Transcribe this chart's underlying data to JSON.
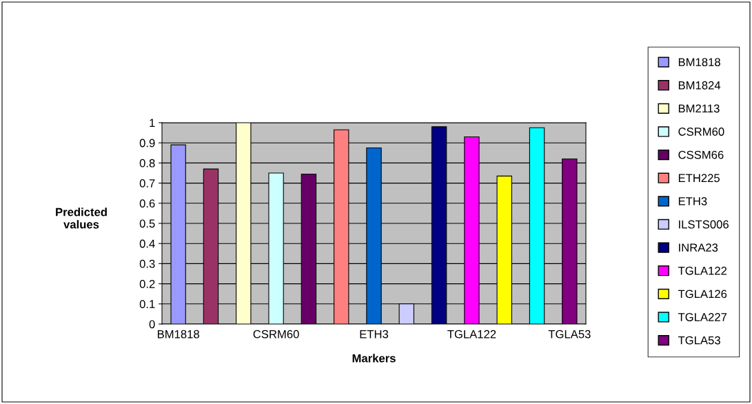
{
  "chart_data": {
    "type": "bar",
    "stacked": true,
    "xlabel": "Markers",
    "ylabel": "Predicted values",
    "categories": [
      "BM1818",
      null,
      null,
      "CSRM60",
      null,
      null,
      "ETH3",
      null,
      null,
      "TGLA122",
      null,
      null,
      "TGLA53"
    ],
    "series": [
      {
        "name": "BM1818",
        "color": "#9999ff",
        "values": [
          0.89,
          null,
          null,
          null,
          null,
          null,
          null,
          null,
          null,
          null,
          null,
          null,
          null
        ]
      },
      {
        "name": "BM1824",
        "color": "#993366",
        "values": [
          null,
          0.77,
          null,
          null,
          null,
          null,
          null,
          null,
          null,
          null,
          null,
          null,
          null
        ]
      },
      {
        "name": "BM2113",
        "color": "#ffffcc",
        "values": [
          null,
          null,
          1.0,
          null,
          null,
          null,
          null,
          null,
          null,
          null,
          null,
          null,
          null
        ]
      },
      {
        "name": "CSRM60",
        "color": "#ccffff",
        "values": [
          null,
          null,
          null,
          0.75,
          null,
          null,
          null,
          null,
          null,
          null,
          null,
          null,
          null
        ]
      },
      {
        "name": "CSSM66",
        "color": "#660066",
        "values": [
          null,
          null,
          null,
          null,
          0.745,
          null,
          null,
          null,
          null,
          null,
          null,
          null,
          null
        ]
      },
      {
        "name": "ETH225",
        "color": "#ff8080",
        "values": [
          null,
          null,
          null,
          null,
          null,
          0.965,
          null,
          null,
          null,
          null,
          null,
          null,
          null
        ]
      },
      {
        "name": "ETH3",
        "color": "#0066cc",
        "values": [
          null,
          null,
          null,
          null,
          null,
          null,
          0.875,
          null,
          null,
          null,
          null,
          null,
          null
        ]
      },
      {
        "name": "ILSTS006",
        "color": "#ccccff",
        "values": [
          null,
          null,
          null,
          null,
          null,
          null,
          null,
          0.1,
          null,
          null,
          null,
          null,
          null
        ]
      },
      {
        "name": "INRA23",
        "color": "#000080",
        "values": [
          null,
          null,
          null,
          null,
          null,
          null,
          null,
          null,
          0.98,
          null,
          null,
          null,
          null
        ]
      },
      {
        "name": "TGLA122",
        "color": "#ff00ff",
        "values": [
          null,
          null,
          null,
          null,
          null,
          null,
          null,
          null,
          null,
          0.93,
          null,
          null,
          null
        ]
      },
      {
        "name": "TGLA126",
        "color": "#ffff00",
        "values": [
          null,
          null,
          null,
          null,
          null,
          null,
          null,
          null,
          null,
          null,
          0.735,
          null,
          null
        ]
      },
      {
        "name": "TGLA227",
        "color": "#00ffff",
        "values": [
          null,
          null,
          null,
          null,
          null,
          null,
          null,
          null,
          null,
          null,
          null,
          0.975,
          null
        ]
      },
      {
        "name": "TGLA53",
        "color": "#800080",
        "values": [
          null,
          null,
          null,
          null,
          null,
          null,
          null,
          null,
          null,
          null,
          null,
          null,
          0.82
        ]
      }
    ],
    "ylim": [
      0,
      1
    ],
    "yticks": [
      0,
      0.1,
      0.2,
      0.3,
      0.4,
      0.5,
      0.6,
      0.7,
      0.8,
      0.9,
      1
    ],
    "grid": "y",
    "legend": "right"
  }
}
